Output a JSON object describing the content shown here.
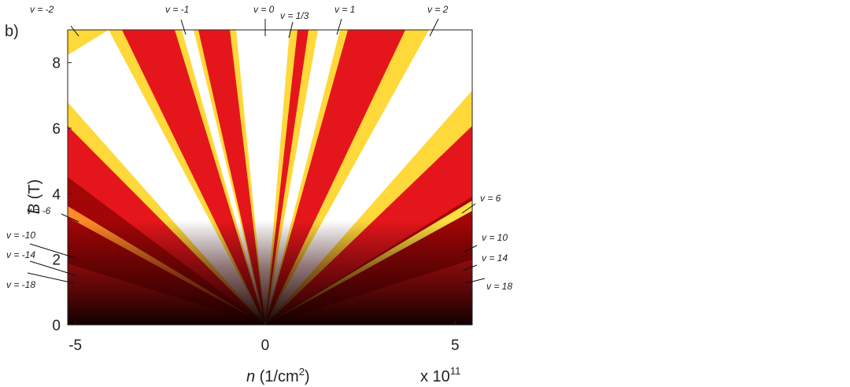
{
  "chart_data": {
    "type": "heatmap",
    "panel_label": "b)",
    "x_label": {
      "symbol": "n",
      "unit_start": " (1/cm",
      "unit_power": "2",
      "unit_end": ")"
    },
    "y_label": {
      "symbol": "B",
      "unit": " (T)"
    },
    "x_multiplier": {
      "base": "x 10",
      "exponent": "11"
    },
    "xlim": [
      -5.2,
      5.45
    ],
    "xticks": [
      -5,
      0,
      5
    ],
    "ylim": [
      0,
      9
    ],
    "yticks": [
      0,
      2,
      4,
      6,
      8
    ],
    "annotations": [
      "v = -2",
      "v = -1",
      "v = 0",
      "v = 1/3",
      "v = 1",
      "v = 2",
      "v = 6",
      "v = 10",
      "v = 14",
      "v = 18",
      "v = -6",
      "v = -10",
      "v = -14",
      "v = -18"
    ]
  }
}
